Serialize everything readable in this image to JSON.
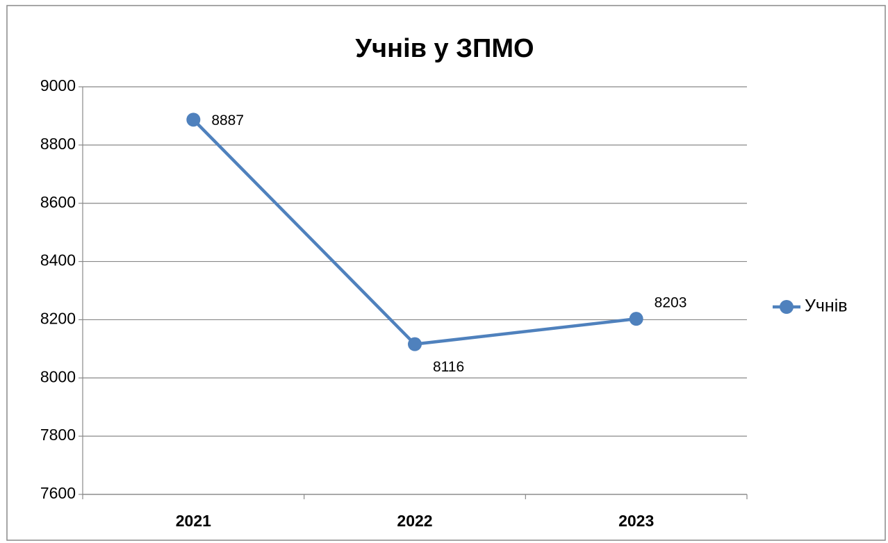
{
  "chart_data": {
    "type": "line",
    "title": "Учнів у ЗПМО",
    "categories": [
      "2021",
      "2022",
      "2023"
    ],
    "series": [
      {
        "name": "Учнів",
        "color": "#4f81bd",
        "values": [
          8887,
          8116,
          8203
        ]
      }
    ],
    "ylim": [
      7600,
      9000
    ],
    "yticks": [
      7600,
      7800,
      8000,
      8200,
      8400,
      8600,
      8800,
      9000
    ],
    "grid": true,
    "legend": "right"
  }
}
